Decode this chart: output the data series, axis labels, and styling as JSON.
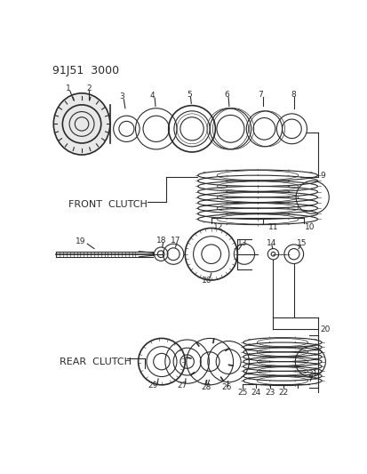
{
  "title": "91J51  3000",
  "front_clutch_label": "FRONT  CLUTCH",
  "rear_clutch_label": "REAR  CLUTCH",
  "bg_color": "#ffffff",
  "line_color": "#2a2a2a",
  "font_size_title": 9,
  "font_size_label": 8,
  "font_size_num": 6.5,
  "fig_w": 4.14,
  "fig_h": 5.33,
  "dpi": 100
}
